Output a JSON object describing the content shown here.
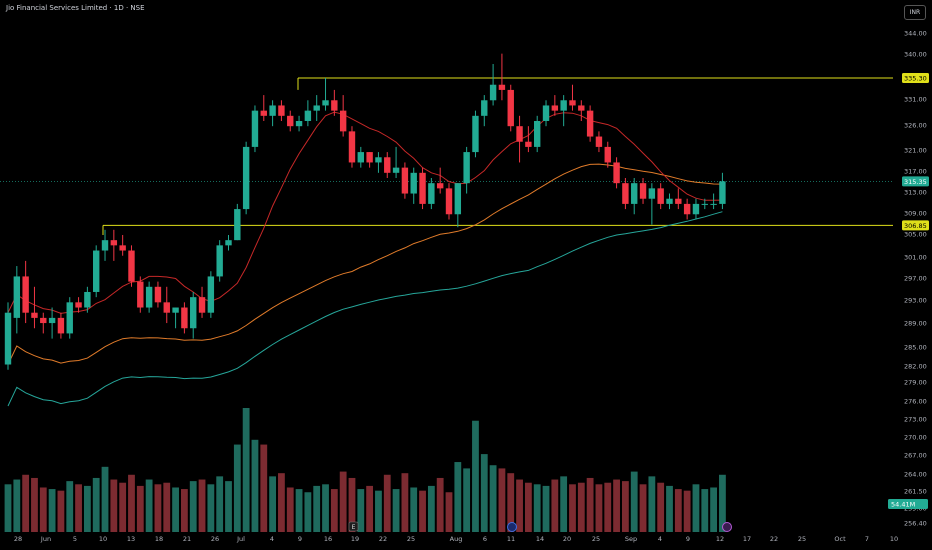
{
  "header": {
    "title": "Jio Financial Services Limited · 1D · NSE",
    "currency_button": "INR"
  },
  "chart_data": {
    "type": "candlestick",
    "interval": "1D",
    "y_ticks": [
      "344.00",
      "340.00",
      "335.00",
      "331.00",
      "326.00",
      "321.00",
      "317.00",
      "313.00",
      "309.00",
      "305.00",
      "301.00",
      "297.00",
      "293.00",
      "289.00",
      "285.00",
      "282.00",
      "279.00",
      "276.00",
      "273.00",
      "270.00",
      "267.00",
      "264.00",
      "261.50",
      "259.00",
      "256.40"
    ],
    "x_ticks": [
      "28",
      "Jun",
      "5",
      "10",
      "13",
      "18",
      "21",
      "26",
      "Jul",
      "4",
      "9",
      "16",
      "19",
      "22",
      "25",
      "Aug",
      "6",
      "11",
      "14",
      "20",
      "25",
      "Sep",
      "4",
      "9",
      "12",
      "17",
      "22",
      "25",
      "Oct",
      "7",
      "10"
    ],
    "price_labels": [
      {
        "text": "335.30",
        "value": 335.3,
        "kind": "resistance"
      },
      {
        "text": "315.35",
        "value": 315.35,
        "kind": "last"
      },
      {
        "text": "306.85",
        "value": 306.85,
        "kind": "support"
      }
    ],
    "volume_label": "54.41M",
    "event_markers": [
      "E"
    ],
    "horizontal_lines": [
      {
        "value": 335.3,
        "color": "#e0e01a"
      },
      {
        "value": 306.85,
        "color": "#e0e01a"
      }
    ],
    "candles": [
      {
        "o": 280,
        "h": 292,
        "l": 279,
        "c": 290
      },
      {
        "o": 289,
        "h": 299,
        "l": 286,
        "c": 297
      },
      {
        "o": 297,
        "h": 300,
        "l": 288,
        "c": 290
      },
      {
        "o": 290,
        "h": 295,
        "l": 287,
        "c": 289
      },
      {
        "o": 289,
        "h": 290,
        "l": 286,
        "c": 288
      },
      {
        "o": 288,
        "h": 291,
        "l": 285,
        "c": 289
      },
      {
        "o": 289,
        "h": 290,
        "l": 285,
        "c": 286
      },
      {
        "o": 286,
        "h": 293,
        "l": 285,
        "c": 292
      },
      {
        "o": 292,
        "h": 293,
        "l": 290,
        "c": 291
      },
      {
        "o": 291,
        "h": 295,
        "l": 290,
        "c": 294
      },
      {
        "o": 294,
        "h": 303,
        "l": 293,
        "c": 302
      },
      {
        "o": 302,
        "h": 306,
        "l": 300,
        "c": 304
      },
      {
        "o": 304,
        "h": 306,
        "l": 300,
        "c": 303
      },
      {
        "o": 303,
        "h": 305,
        "l": 301,
        "c": 302
      },
      {
        "o": 302,
        "h": 303,
        "l": 295,
        "c": 296
      },
      {
        "o": 296,
        "h": 297,
        "l": 290,
        "c": 291
      },
      {
        "o": 291,
        "h": 296,
        "l": 290,
        "c": 295
      },
      {
        "o": 295,
        "h": 296,
        "l": 291,
        "c": 292
      },
      {
        "o": 292,
        "h": 295,
        "l": 288,
        "c": 290
      },
      {
        "o": 290,
        "h": 291,
        "l": 287,
        "c": 291
      },
      {
        "o": 291,
        "h": 292,
        "l": 286,
        "c": 287
      },
      {
        "o": 287,
        "h": 294,
        "l": 285,
        "c": 293
      },
      {
        "o": 293,
        "h": 295,
        "l": 289,
        "c": 290
      },
      {
        "o": 290,
        "h": 298,
        "l": 289,
        "c": 297
      },
      {
        "o": 297,
        "h": 304,
        "l": 296,
        "c": 303
      },
      {
        "o": 303,
        "h": 305,
        "l": 302,
        "c": 304
      },
      {
        "o": 304,
        "h": 311,
        "l": 304,
        "c": 310
      },
      {
        "o": 310,
        "h": 323,
        "l": 309,
        "c": 322
      },
      {
        "o": 322,
        "h": 330,
        "l": 321,
        "c": 329
      },
      {
        "o": 329,
        "h": 332,
        "l": 327,
        "c": 328
      },
      {
        "o": 328,
        "h": 331,
        "l": 326,
        "c": 330
      },
      {
        "o": 330,
        "h": 331,
        "l": 327,
        "c": 328
      },
      {
        "o": 328,
        "h": 329,
        "l": 325,
        "c": 326
      },
      {
        "o": 326,
        "h": 328,
        "l": 325,
        "c": 327
      },
      {
        "o": 327,
        "h": 331,
        "l": 326,
        "c": 329
      },
      {
        "o": 329,
        "h": 332,
        "l": 327,
        "c": 330
      },
      {
        "o": 330,
        "h": 335.3,
        "l": 329,
        "c": 331
      },
      {
        "o": 331,
        "h": 333,
        "l": 328,
        "c": 329
      },
      {
        "o": 329,
        "h": 332,
        "l": 324,
        "c": 325
      },
      {
        "o": 325,
        "h": 326,
        "l": 318,
        "c": 319
      },
      {
        "o": 319,
        "h": 322,
        "l": 318,
        "c": 321
      },
      {
        "o": 321,
        "h": 321,
        "l": 318,
        "c": 319
      },
      {
        "o": 319,
        "h": 321,
        "l": 317,
        "c": 320
      },
      {
        "o": 320,
        "h": 321,
        "l": 316,
        "c": 317
      },
      {
        "o": 317,
        "h": 322,
        "l": 316,
        "c": 318
      },
      {
        "o": 318,
        "h": 319,
        "l": 312,
        "c": 313
      },
      {
        "o": 313,
        "h": 318,
        "l": 311,
        "c": 317
      },
      {
        "o": 317,
        "h": 318,
        "l": 310,
        "c": 311
      },
      {
        "o": 311,
        "h": 316,
        "l": 310,
        "c": 315
      },
      {
        "o": 315,
        "h": 318,
        "l": 313,
        "c": 314
      },
      {
        "o": 314,
        "h": 315,
        "l": 308,
        "c": 309
      },
      {
        "o": 309,
        "h": 315,
        "l": 306.5,
        "c": 315
      },
      {
        "o": 315,
        "h": 322,
        "l": 313,
        "c": 321
      },
      {
        "o": 321,
        "h": 329,
        "l": 320,
        "c": 328
      },
      {
        "o": 328,
        "h": 332,
        "l": 326,
        "c": 331
      },
      {
        "o": 331,
        "h": 338,
        "l": 330,
        "c": 334
      },
      {
        "o": 334,
        "h": 340,
        "l": 331,
        "c": 333
      },
      {
        "o": 333,
        "h": 334,
        "l": 325,
        "c": 326
      },
      {
        "o": 326,
        "h": 328,
        "l": 319,
        "c": 323
      },
      {
        "o": 323,
        "h": 326,
        "l": 321,
        "c": 322
      },
      {
        "o": 322,
        "h": 328,
        "l": 321,
        "c": 327
      },
      {
        "o": 327,
        "h": 331,
        "l": 326,
        "c": 330
      },
      {
        "o": 330,
        "h": 332,
        "l": 328,
        "c": 329
      },
      {
        "o": 329,
        "h": 332,
        "l": 326,
        "c": 331
      },
      {
        "o": 331,
        "h": 334,
        "l": 329,
        "c": 330
      },
      {
        "o": 330,
        "h": 331,
        "l": 327,
        "c": 329
      },
      {
        "o": 329,
        "h": 330,
        "l": 323,
        "c": 324
      },
      {
        "o": 324,
        "h": 325,
        "l": 321,
        "c": 322
      },
      {
        "o": 322,
        "h": 323,
        "l": 318,
        "c": 319
      },
      {
        "o": 319,
        "h": 320,
        "l": 314,
        "c": 315
      },
      {
        "o": 315,
        "h": 316,
        "l": 310,
        "c": 311
      },
      {
        "o": 311,
        "h": 316,
        "l": 309,
        "c": 315
      },
      {
        "o": 315,
        "h": 316,
        "l": 311,
        "c": 312
      },
      {
        "o": 312,
        "h": 315,
        "l": 307,
        "c": 314
      },
      {
        "o": 314,
        "h": 315,
        "l": 310,
        "c": 311
      },
      {
        "o": 311,
        "h": 313,
        "l": 310,
        "c": 312
      },
      {
        "o": 312,
        "h": 314,
        "l": 310,
        "c": 311
      },
      {
        "o": 311,
        "h": 312,
        "l": 308,
        "c": 309
      },
      {
        "o": 309,
        "h": 312,
        "l": 308,
        "c": 311
      },
      {
        "o": 311,
        "h": 312,
        "l": 310,
        "c": 311
      },
      {
        "o": 311,
        "h": 313,
        "l": 310,
        "c": 311
      },
      {
        "o": 311,
        "h": 317,
        "l": 310,
        "c": 315.35
      }
    ],
    "volumes": [
      30,
      33,
      36,
      34,
      28,
      27,
      26,
      32,
      30,
      29,
      34,
      41,
      33,
      31,
      36,
      29,
      33,
      30,
      31,
      28,
      27,
      32,
      33,
      30,
      35,
      32,
      55,
      78,
      58,
      55,
      35,
      37,
      28,
      27,
      25,
      29,
      30,
      27,
      38,
      34,
      27,
      29,
      26,
      36,
      27,
      37,
      28,
      26,
      29,
      34,
      25,
      44,
      40,
      70,
      49,
      42,
      40,
      37,
      33,
      31,
      30,
      29,
      33,
      35,
      30,
      31,
      34,
      30,
      31,
      33,
      32,
      38,
      30,
      35,
      31,
      29,
      27,
      26,
      30,
      27,
      28,
      36
    ]
  }
}
